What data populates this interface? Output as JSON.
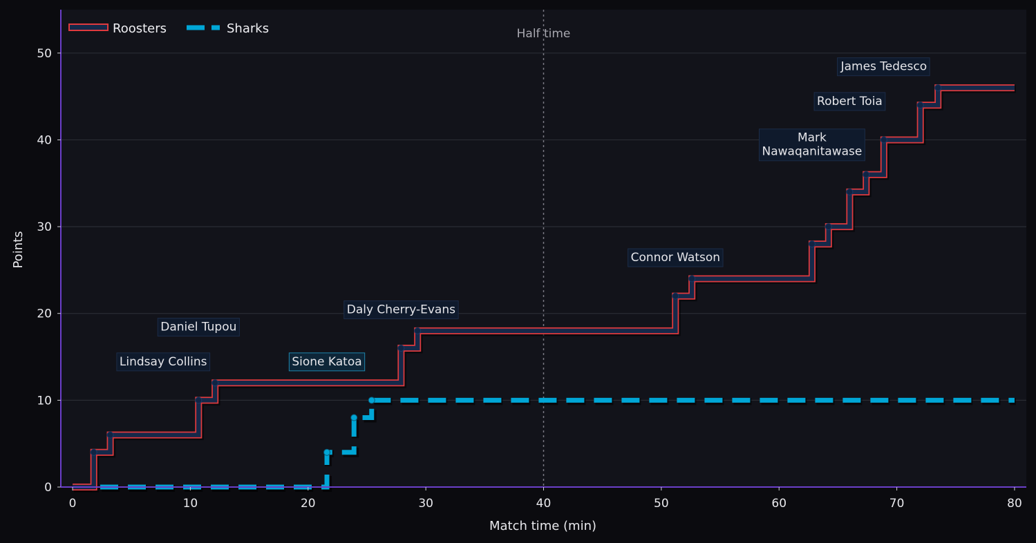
{
  "chart_data": {
    "type": "line",
    "step": true,
    "xlabel": "Match time (min)",
    "ylabel": "Points",
    "xlim": [
      -1,
      81
    ],
    "ylim": [
      0,
      55
    ],
    "xticks": [
      0,
      10,
      20,
      30,
      40,
      50,
      60,
      70,
      80
    ],
    "yticks": [
      0,
      10,
      20,
      30,
      40,
      50
    ],
    "grid": "horizontal",
    "legend": "top-left",
    "half_time": {
      "x": 40,
      "label": "Half time"
    },
    "colors": {
      "background": "#0b0b0f",
      "plot_bg": "#12131a",
      "roosters_edge": "#e03a3e",
      "roosters_fill": "#15294a",
      "sharks": "#00a6d6",
      "axis_spine": "#6b3fc9",
      "grid": "#2a2c34"
    },
    "series": [
      {
        "name": "Roosters",
        "style": "solid-outlined",
        "x": [
          0,
          1.8,
          3.2,
          10.7,
          12.1,
          27.9,
          29.3,
          51.2,
          52.6,
          62.8,
          64.2,
          66.0,
          67.4,
          68.9,
          72.0,
          73.5,
          80
        ],
        "y": [
          0,
          4,
          6,
          10,
          12,
          16,
          18,
          22,
          24,
          28,
          30,
          34,
          36,
          40,
          44,
          46,
          46
        ]
      },
      {
        "name": "Sharks",
        "style": "dashed",
        "x": [
          0,
          21.6,
          23.9,
          25.4,
          80
        ],
        "y": [
          0,
          4,
          8,
          10,
          10
        ]
      }
    ],
    "annotations": [
      {
        "text": "Lindsay Collins",
        "x": 7.7,
        "y": 14.5,
        "team": "Roosters"
      },
      {
        "text": "Daniel Tupou",
        "x": 10.7,
        "y": 18.5,
        "team": "Roosters"
      },
      {
        "text": "Sione Katoa",
        "x": 21.6,
        "y": 14.5,
        "team": "Sharks"
      },
      {
        "text": "Daly Cherry-Evans",
        "x": 27.9,
        "y": 20.5,
        "team": "Roosters"
      },
      {
        "text": "Connor Watson",
        "x": 51.2,
        "y": 26.5,
        "team": "Roosters"
      },
      {
        "text": "Mark\nNawaqanitawase",
        "x": 62.8,
        "y": 39.5,
        "team": "Roosters"
      },
      {
        "text": "Robert Toia",
        "x": 66.0,
        "y": 44.5,
        "team": "Roosters"
      },
      {
        "text": "James Tedesco",
        "x": 68.9,
        "y": 48.5,
        "team": "Roosters"
      }
    ]
  }
}
